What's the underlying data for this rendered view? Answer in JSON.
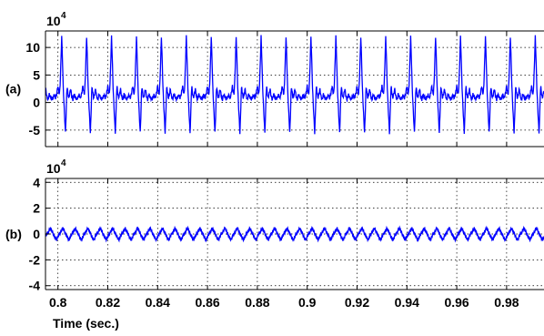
{
  "chart_data": [
    {
      "type": "line",
      "panel_label": "(a)",
      "exponent_label": "10",
      "exponent_power": "4",
      "xlim": [
        0.795,
        0.995
      ],
      "ylim": [
        -8,
        13
      ],
      "y_ticks": [
        -5,
        0,
        5,
        10
      ],
      "y_tick_labels": [
        "-5",
        "0",
        "5",
        "10"
      ],
      "x_ticks": [
        0.8,
        0.82,
        0.84,
        0.86,
        0.88,
        0.9,
        0.92,
        0.94,
        0.96,
        0.98
      ],
      "grid": true,
      "line_color": "#0000ff",
      "series": [
        {
          "period": 0.01,
          "first_peak_time": 0.8015,
          "repeats_over": [
            0.795,
            0.995
          ],
          "one_period_shape": {
            "phase": [
              0,
              0.03,
              0.06,
              0.1,
              0.15,
              0.18,
              0.2,
              0.22,
              0.24,
              0.28,
              0.32,
              0.36,
              0.4,
              0.45,
              0.5,
              0.55,
              0.6,
              0.65,
              0.7,
              0.75,
              0.8,
              0.85,
              0.88,
              0.91,
              0.94,
              0.97,
              1.0
            ],
            "value": [
              12.0,
              8.0,
              3.0,
              -1.0,
              -5.5,
              -2.0,
              1.5,
              3.0,
              2.0,
              0.8,
              1.5,
              2.5,
              1.2,
              0.5,
              1.5,
              1.0,
              0.6,
              0.9,
              1.4,
              0.8,
              1.6,
              3.0,
              2.0,
              1.5,
              3.5,
              7.5,
              12.0
            ]
          }
        }
      ]
    },
    {
      "type": "line",
      "panel_label": "(b)",
      "exponent_label": "10",
      "exponent_power": "4",
      "xlim": [
        0.795,
        0.995
      ],
      "ylim": [
        -4.3,
        4.3
      ],
      "y_ticks": [
        -4,
        -2,
        0,
        2,
        4
      ],
      "y_tick_labels": [
        "-4",
        "-2",
        "0",
        "2",
        "4"
      ],
      "x_ticks": [
        0.8,
        0.82,
        0.84,
        0.86,
        0.88,
        0.9,
        0.92,
        0.94,
        0.96,
        0.98
      ],
      "x_tick_labels": [
        "0.8",
        "0.82",
        "0.84",
        "0.86",
        "0.88",
        "0.9",
        "0.92",
        "0.94",
        "0.96",
        "0.98"
      ],
      "xlabel": "Time (sec.)",
      "grid": true,
      "line_color": "#0000ff",
      "series": [
        {
          "period": 0.005,
          "first_peak_time": 0.797,
          "repeats_over": [
            0.795,
            0.995
          ],
          "one_period_shape": {
            "phase": [
              0,
              0.1,
              0.2,
              0.3,
              0.4,
              0.5,
              0.6,
              0.7,
              0.8,
              0.9,
              1.0
            ],
            "value": [
              0.45,
              0.25,
              0.05,
              -0.15,
              -0.35,
              -0.45,
              -0.2,
              0.0,
              0.1,
              0.3,
              0.45
            ]
          }
        }
      ]
    }
  ]
}
